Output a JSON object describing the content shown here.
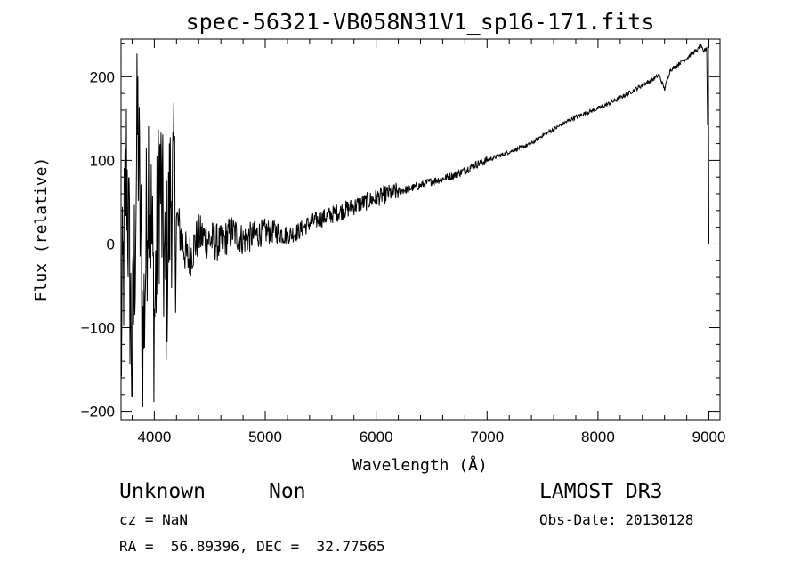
{
  "chart_data": {
    "type": "line",
    "title": "spec-56321-VB058N31V1_sp16-171.fits",
    "xlabel": "Wavelength (Å)",
    "ylabel": "Flux (relative)",
    "xlim": [
      3700,
      9100
    ],
    "ylim": [
      -210,
      245
    ],
    "x_ticks": [
      4000,
      5000,
      6000,
      7000,
      8000,
      9000
    ],
    "y_ticks": [
      -200,
      -100,
      0,
      100,
      200
    ],
    "x_tick_labels": [
      "4000",
      "5000",
      "6000",
      "7000",
      "8000",
      "9000"
    ],
    "y_tick_labels": [
      "−200",
      "−100",
      "0",
      "100",
      "200"
    ],
    "series": [
      {
        "name": "flux",
        "x": [
          3700,
          3750,
          3800,
          3850,
          3900,
          3950,
          4000,
          4050,
          4100,
          4150,
          4200,
          4300,
          4400,
          4500,
          4600,
          4700,
          4800,
          4900,
          5000,
          5100,
          5200,
          5300,
          5400,
          5500,
          5600,
          5700,
          5800,
          5900,
          6000,
          6100,
          6200,
          6300,
          6400,
          6500,
          6600,
          6700,
          6800,
          6900,
          7000,
          7100,
          7200,
          7300,
          7400,
          7500,
          7600,
          7700,
          7800,
          7900,
          8000,
          8100,
          8200,
          8300,
          8400,
          8500,
          8550,
          8600,
          8650,
          8700,
          8750,
          8800,
          8850,
          8900,
          8920,
          8950,
          8980,
          9000
        ],
        "values": [
          -130,
          100,
          -150,
          150,
          -120,
          110,
          -90,
          90,
          -60,
          70,
          30,
          -20,
          10,
          5,
          0,
          15,
          5,
          10,
          15,
          15,
          10,
          15,
          25,
          30,
          35,
          40,
          45,
          50,
          55,
          60,
          63,
          66,
          70,
          75,
          78,
          82,
          88,
          95,
          100,
          105,
          110,
          115,
          120,
          130,
          137,
          145,
          152,
          157,
          162,
          168,
          175,
          182,
          190,
          197,
          202,
          185,
          208,
          212,
          218,
          222,
          228,
          232,
          238,
          230,
          235,
          0
        ]
      }
    ]
  },
  "footer": {
    "class_label": "Unknown",
    "subclass_label": "Non",
    "survey": "LAMOST DR3",
    "cz": "cz = NaN",
    "obs_date": "Obs-Date: 20130128",
    "coords": "RA =  56.89396, DEC =  32.77565"
  }
}
